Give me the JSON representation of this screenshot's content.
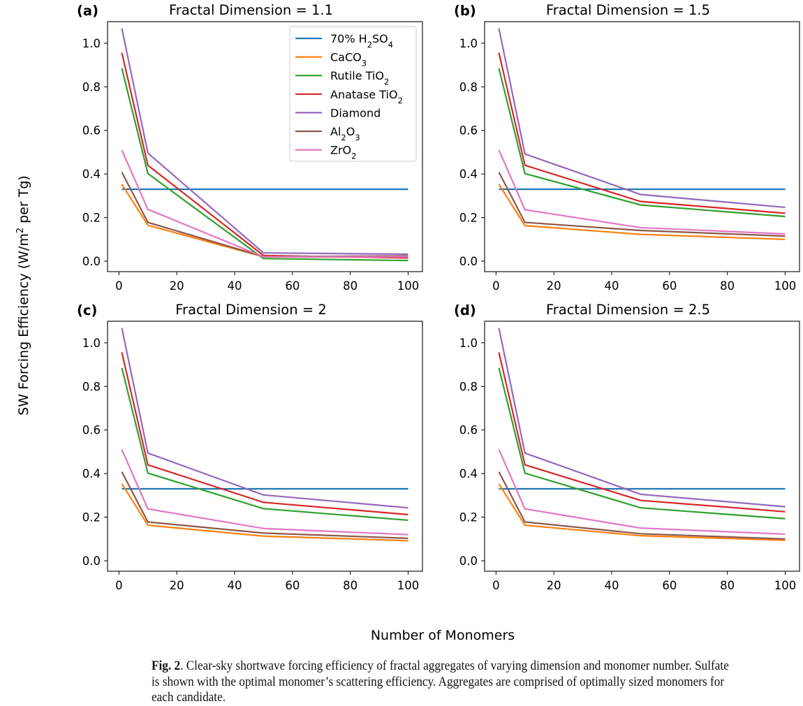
{
  "figure": {
    "ylabel": "SW Forcing Efficiency (W/m² per Tg)",
    "ylabel_parts": {
      "pre": "SW Forcing Efficiency (W/m",
      "sup": "2",
      "post": " per Tg)"
    },
    "xlabel": "Number of Monomers"
  },
  "caption": {
    "label": "Fig. 2",
    "text": ".  Clear-sky shortwave forcing efficiency of fractal aggregates of varying dimension and monomer number. Sulfate is shown with the optimal monomer’s scattering efficiency. Aggregates are comprised of optimally sized monomers for each candidate."
  },
  "legend": {
    "placement": "upper-right of panel (a)",
    "entries": [
      {
        "name": "70% H2SO4",
        "base": "70% H",
        "sub": "2",
        "mid": "SO",
        "sub2": "4",
        "color": "#1f77b4"
      },
      {
        "name": "CaCO3",
        "base": "CaCO",
        "sub": "3",
        "mid": "",
        "sub2": "",
        "color": "#ff7f0e"
      },
      {
        "name": "Rutile TiO2",
        "base": "Rutile TiO",
        "sub": "2",
        "mid": "",
        "sub2": "",
        "color": "#2ca02c"
      },
      {
        "name": "Anatase TiO2",
        "base": "Anatase TiO",
        "sub": "2",
        "mid": "",
        "sub2": "",
        "color": "#d62728"
      },
      {
        "name": "Diamond",
        "base": "Diamond",
        "sub": "",
        "mid": "",
        "sub2": "",
        "color": "#9467bd"
      },
      {
        "name": "Al2O3",
        "base": "Al",
        "sub": "2",
        "mid": "O",
        "sub2": "3",
        "color": "#8c564b"
      },
      {
        "name": "ZrO2",
        "base": "ZrO",
        "sub": "2",
        "mid": "",
        "sub2": "",
        "color": "#e377c2"
      }
    ]
  },
  "chart_data": [
    {
      "type": "line",
      "panel_label": "(a)",
      "title": "Fractal Dimension = 1.1",
      "xlabel": "Number of Monomers",
      "ylabel": "SW Forcing Efficiency (W/m² per Tg)",
      "x": [
        1,
        10,
        50,
        100
      ],
      "xlim": [
        -3.95,
        104.95
      ],
      "ylim": [
        -0.048,
        1.099
      ],
      "xticks": [
        0,
        20,
        40,
        60,
        80,
        100
      ],
      "yticks": [
        0.0,
        0.2,
        0.4,
        0.6,
        0.8,
        1.0
      ],
      "ytick_labels": [
        "0.0",
        "0.2",
        "0.4",
        "0.6",
        "0.8",
        "1.0"
      ],
      "grid": false,
      "legend": true,
      "series": [
        {
          "name": "70% H2SO4",
          "values": [
            0.33,
            0.33,
            0.33,
            0.33
          ]
        },
        {
          "name": "CaCO3",
          "values": [
            0.353,
            0.165,
            0.02,
            0.018
          ]
        },
        {
          "name": "Rutile TiO2",
          "values": [
            0.885,
            0.402,
            0.012,
            0.003
          ]
        },
        {
          "name": "Anatase TiO2",
          "values": [
            0.956,
            0.44,
            0.026,
            0.015
          ]
        },
        {
          "name": "Diamond",
          "values": [
            1.068,
            0.496,
            0.038,
            0.032
          ]
        },
        {
          "name": "Al2O3",
          "values": [
            0.408,
            0.178,
            0.021,
            0.024
          ]
        },
        {
          "name": "ZrO2",
          "values": [
            0.51,
            0.238,
            0.02,
            0.02
          ]
        }
      ]
    },
    {
      "type": "line",
      "panel_label": "(b)",
      "title": "Fractal Dimension = 1.5",
      "xlabel": "Number of Monomers",
      "ylabel": "SW Forcing Efficiency (W/m² per Tg)",
      "x": [
        1,
        10,
        50,
        100
      ],
      "xlim": [
        -3.95,
        104.95
      ],
      "ylim": [
        -0.048,
        1.099
      ],
      "xticks": [
        0,
        20,
        40,
        60,
        80,
        100
      ],
      "yticks": [
        0.0,
        0.2,
        0.4,
        0.6,
        0.8,
        1.0
      ],
      "ytick_labels": [
        "0.0",
        "0.2",
        "0.4",
        "0.6",
        "0.8",
        "1.0"
      ],
      "grid": false,
      "legend": false,
      "series": [
        {
          "name": "70% H2SO4",
          "values": [
            0.33,
            0.33,
            0.33,
            0.33
          ]
        },
        {
          "name": "CaCO3",
          "values": [
            0.353,
            0.163,
            0.123,
            0.1
          ]
        },
        {
          "name": "Rutile TiO2",
          "values": [
            0.885,
            0.402,
            0.258,
            0.205
          ]
        },
        {
          "name": "Anatase TiO2",
          "values": [
            0.956,
            0.44,
            0.274,
            0.22
          ]
        },
        {
          "name": "Diamond",
          "values": [
            1.068,
            0.492,
            0.306,
            0.247
          ]
        },
        {
          "name": "Al2O3",
          "values": [
            0.408,
            0.178,
            0.141,
            0.115
          ]
        },
        {
          "name": "ZrO2",
          "values": [
            0.51,
            0.236,
            0.154,
            0.125
          ]
        }
      ]
    },
    {
      "type": "line",
      "panel_label": "(c)",
      "title": "Fractal Dimension = 2",
      "xlabel": "Number of Monomers",
      "ylabel": "SW Forcing Efficiency (W/m² per Tg)",
      "x": [
        1,
        10,
        50,
        100
      ],
      "xlim": [
        -3.95,
        104.95
      ],
      "ylim": [
        -0.048,
        1.099
      ],
      "xticks": [
        0,
        20,
        40,
        60,
        80,
        100
      ],
      "yticks": [
        0.0,
        0.2,
        0.4,
        0.6,
        0.8,
        1.0
      ],
      "ytick_labels": [
        "0.0",
        "0.2",
        "0.4",
        "0.6",
        "0.8",
        "1.0"
      ],
      "grid": false,
      "legend": false,
      "series": [
        {
          "name": "70% H2SO4",
          "values": [
            0.33,
            0.33,
            0.33,
            0.33
          ]
        },
        {
          "name": "CaCO3",
          "values": [
            0.353,
            0.163,
            0.113,
            0.092
          ]
        },
        {
          "name": "Rutile TiO2",
          "values": [
            0.885,
            0.402,
            0.239,
            0.186
          ]
        },
        {
          "name": "Anatase TiO2",
          "values": [
            0.956,
            0.44,
            0.268,
            0.212
          ]
        },
        {
          "name": "Diamond",
          "values": [
            1.068,
            0.494,
            0.302,
            0.243
          ]
        },
        {
          "name": "Al2O3",
          "values": [
            0.408,
            0.178,
            0.127,
            0.103
          ]
        },
        {
          "name": "ZrO2",
          "values": [
            0.51,
            0.238,
            0.148,
            0.12
          ]
        }
      ]
    },
    {
      "type": "line",
      "panel_label": "(d)",
      "title": "Fractal Dimension = 2.5",
      "xlabel": "Number of Monomers",
      "ylabel": "SW Forcing Efficiency (W/m² per Tg)",
      "x": [
        1,
        10,
        50,
        100
      ],
      "xlim": [
        -3.95,
        104.95
      ],
      "ylim": [
        -0.048,
        1.099
      ],
      "xticks": [
        0,
        20,
        40,
        60,
        80,
        100
      ],
      "yticks": [
        0.0,
        0.2,
        0.4,
        0.6,
        0.8,
        1.0
      ],
      "ytick_labels": [
        "0.0",
        "0.2",
        "0.4",
        "0.6",
        "0.8",
        "1.0"
      ],
      "grid": false,
      "legend": false,
      "series": [
        {
          "name": "70% H2SO4",
          "values": [
            0.33,
            0.33,
            0.33,
            0.33
          ]
        },
        {
          "name": "CaCO3",
          "values": [
            0.353,
            0.163,
            0.115,
            0.094
          ]
        },
        {
          "name": "Rutile TiO2",
          "values": [
            0.885,
            0.402,
            0.243,
            0.193
          ]
        },
        {
          "name": "Anatase TiO2",
          "values": [
            0.956,
            0.44,
            0.277,
            0.225
          ]
        },
        {
          "name": "Diamond",
          "values": [
            1.068,
            0.494,
            0.305,
            0.248
          ]
        },
        {
          "name": "Al2O3",
          "values": [
            0.408,
            0.178,
            0.124,
            0.1
          ]
        },
        {
          "name": "ZrO2",
          "values": [
            0.51,
            0.238,
            0.15,
            0.122
          ]
        }
      ]
    }
  ]
}
